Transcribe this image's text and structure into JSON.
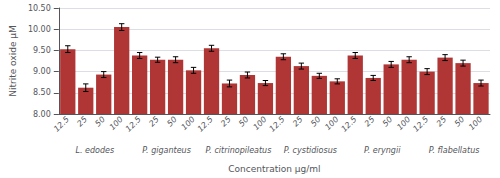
{
  "chart_data": {
    "type": "bar",
    "categories": [
      "12.5",
      "25",
      "50",
      "100",
      "12.5",
      "25",
      "50",
      "100",
      "12.5",
      "25",
      "50",
      "100",
      "12.5",
      "25",
      "50",
      "100",
      "12.5",
      "25",
      "50",
      "100",
      "12.5",
      "25",
      "50",
      "100"
    ],
    "values": [
      9.53,
      8.62,
      8.93,
      10.05,
      9.38,
      9.28,
      9.28,
      9.03,
      9.55,
      8.72,
      8.92,
      8.73,
      9.35,
      9.13,
      8.9,
      8.77,
      9.38,
      8.85,
      9.17,
      9.28,
      9.0,
      9.33,
      9.2,
      8.73
    ],
    "errors": [
      0.08,
      0.09,
      0.07,
      0.08,
      0.07,
      0.06,
      0.07,
      0.07,
      0.07,
      0.08,
      0.07,
      0.06,
      0.07,
      0.07,
      0.06,
      0.06,
      0.07,
      0.06,
      0.07,
      0.07,
      0.07,
      0.07,
      0.07,
      0.07
    ],
    "annotations": [
      "L. edodes",
      "P. giganteus",
      "P. citrinopileatus",
      "P. cystidiosus",
      "P. eryngii",
      "P. flabellatus"
    ],
    "color": "#b03535",
    "xlabel": "Concentration μg/ml",
    "ylabel": "Nitrite oxide μM",
    "ylim": [
      8.0,
      10.5
    ],
    "yticks": [
      {
        "value": 8.0,
        "label": "8.00"
      },
      {
        "value": 8.5,
        "label": "8.50"
      },
      {
        "value": 9.0,
        "label": "9.00"
      },
      {
        "value": 9.5,
        "label": "9.50"
      },
      {
        "value": 10.0,
        "label": "10.00"
      },
      {
        "value": 10.5,
        "label": "10.50"
      }
    ],
    "grid": true
  }
}
